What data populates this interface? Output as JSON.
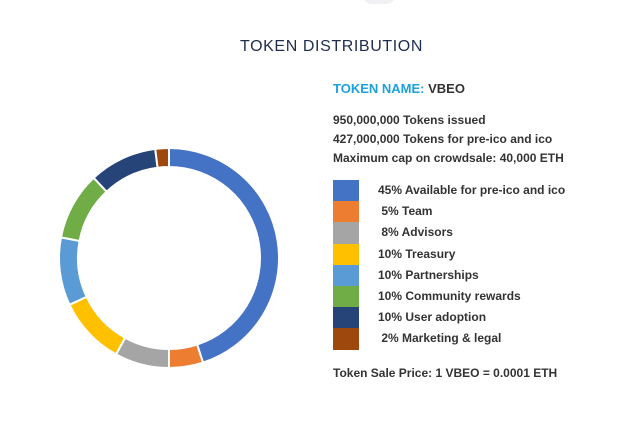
{
  "title": "TOKEN DISTRIBUTION",
  "token": {
    "name_label": "TOKEN NAME:",
    "name_value": " VBEO",
    "facts": [
      "950,000,000 Tokens issued",
      "427,000,000 Tokens for pre-ico and ico",
      "Maximum cap on crowdsale: 40,000 ETH"
    ],
    "price": "Token Sale Price: 1 VBEO = 0.0001 ETH"
  },
  "colors": {
    "title": "#1f2d4d",
    "token_label": "#1da1db",
    "text": "#333333"
  },
  "chart_data": {
    "type": "pie",
    "style": "donut",
    "title": "TOKEN DISTRIBUTION",
    "legend_position": "right",
    "start_angle": "top, clockwise",
    "slices": [
      {
        "label": "45% Available for pre-ico and ico",
        "value": 45,
        "color": "#4472c4"
      },
      {
        "label": " 5% Team",
        "value": 5,
        "color": "#ed7d31"
      },
      {
        "label": " 8% Advisors",
        "value": 8,
        "color": "#a5a5a5"
      },
      {
        "label": "10% Treasury",
        "value": 10,
        "color": "#ffc000"
      },
      {
        "label": "10% Partnerships",
        "value": 10,
        "color": "#5b9bd5"
      },
      {
        "label": "10% Community rewards",
        "value": 10,
        "color": "#70ad47"
      },
      {
        "label": "10% User adoption",
        "value": 10,
        "color": "#264478"
      },
      {
        "label": " 2% Marketing & legal",
        "value": 2,
        "color": "#9e480e"
      }
    ]
  }
}
